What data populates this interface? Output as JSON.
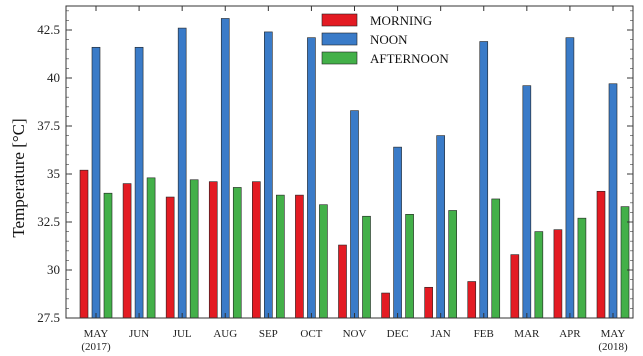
{
  "chart_data": {
    "type": "bar",
    "title": "",
    "xlabel": "",
    "ylabel": "Temperature [°C]",
    "ylim": [
      27.5,
      43.75
    ],
    "yticks": [
      27.5,
      30,
      32.5,
      35,
      37.5,
      40,
      42.5
    ],
    "ytick_labels": [
      "27.5",
      "30",
      "32.5",
      "35",
      "37.5",
      "40",
      "42.5"
    ],
    "categories": [
      [
        "MAY",
        "(2017)"
      ],
      [
        "JUN"
      ],
      [
        "JUL"
      ],
      [
        "AUG"
      ],
      [
        "SEP"
      ],
      [
        "OCT"
      ],
      [
        "NOV"
      ],
      [
        "DEC"
      ],
      [
        "JAN"
      ],
      [
        "FEB"
      ],
      [
        "MAR"
      ],
      [
        "APR"
      ],
      [
        "MAY",
        "(2018)"
      ]
    ],
    "series": [
      {
        "name": "MORNING",
        "color": "#e31b23",
        "values": [
          35.2,
          34.5,
          33.8,
          34.6,
          34.6,
          33.9,
          31.3,
          28.8,
          29.1,
          29.4,
          30.8,
          32.1,
          34.1
        ]
      },
      {
        "name": "NOON",
        "color": "#3a7bc8",
        "values": [
          41.6,
          41.6,
          42.6,
          43.1,
          42.4,
          42.1,
          38.3,
          36.4,
          37.0,
          41.9,
          39.6,
          42.1,
          39.7
        ]
      },
      {
        "name": "AFTERNOON",
        "color": "#43b049",
        "values": [
          34.0,
          34.8,
          34.7,
          34.3,
          33.9,
          33.4,
          32.8,
          32.9,
          33.1,
          33.7,
          32.0,
          32.7,
          33.3
        ]
      }
    ],
    "grid": false,
    "legend": "top-center"
  }
}
